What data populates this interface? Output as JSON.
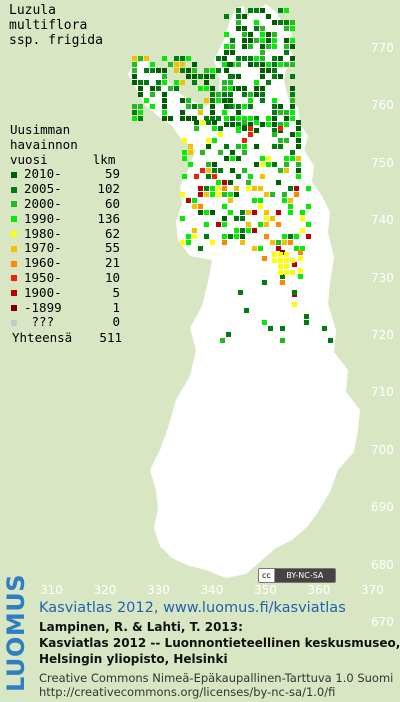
{
  "map": {
    "species_title": "Luzula\nmultiflora\nssp. frigida",
    "legend": {
      "heading": "Uusimman\nhavainnon\nvuosi      lkm",
      "rows": [
        {
          "period": "2010-",
          "count": "59",
          "color": "#005d00"
        },
        {
          "period": "2005-",
          "count": "102",
          "color": "#007d10"
        },
        {
          "period": "2000-",
          "count": "60",
          "color": "#22bb22"
        },
        {
          "period": "1990-",
          "count": "136",
          "color": "#00ee00"
        },
        {
          "period": "1980-",
          "count": "62",
          "color": "#ffff00"
        },
        {
          "period": "1970-",
          "count": "55",
          "color": "#f2c200"
        },
        {
          "period": "1960-",
          "count": "21",
          "color": "#ff8800"
        },
        {
          "period": "1950-",
          "count": "10",
          "color": "#ee2200"
        },
        {
          "period": "1900-",
          "count": "5",
          "color": "#bb0000"
        },
        {
          "period": "-1899",
          "count": "1",
          "color": "#7d0000"
        },
        {
          "period": " ???",
          "count": "0",
          "color": "#c8c8c8"
        }
      ],
      "total_label": "Yhteensä",
      "total_value": "511"
    },
    "y_ticks": [
      "770",
      "760",
      "750",
      "740",
      "730",
      "720",
      "710",
      "700",
      "690",
      "680",
      "670"
    ],
    "x_ticks": [
      "310",
      "320",
      "330",
      "340",
      "350",
      "360",
      "370"
    ],
    "cc_badge": {
      "symbol": "cc",
      "license": "BY-NC-SA"
    },
    "colors": {
      "background": "#d9e6c4",
      "land": "#ffffff",
      "axis_labels": "#ffffff"
    }
  },
  "footer": {
    "brand": "LUOMUS",
    "atlas_title": "Kasviatlas 2012, www.luomus.fi/kasviatlas",
    "citation_1": "Lampinen, R. & Lahti, T. 2013:",
    "citation_2": "Kasviatlas 2012 -- Luonnontieteellinen keskusmuseo,",
    "citation_3": "Helsingin yliopisto, Helsinki",
    "license_1": "Creative Commons Nimeä-Epäkaupallinen-Tarttuva 1.0 Suomi",
    "license_2": "http://creativecommons.org/licenses/by-nc-sa/1.0/fi"
  }
}
